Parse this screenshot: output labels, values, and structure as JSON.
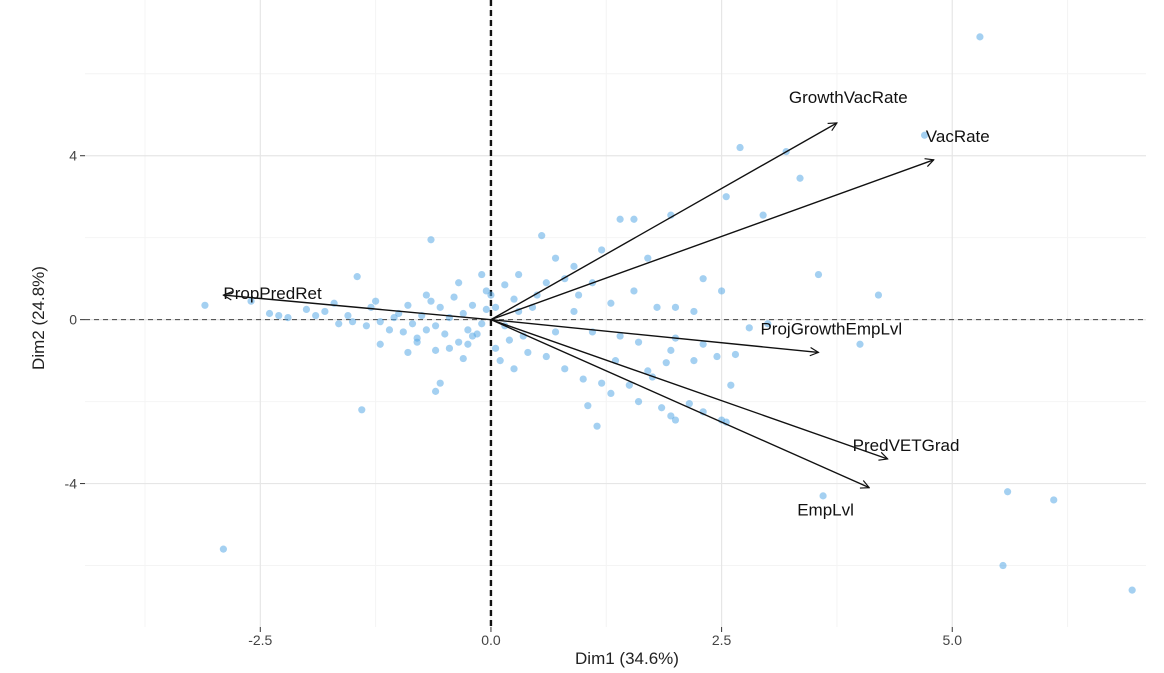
{
  "chart_data": {
    "type": "scatter",
    "xlabel": "Dim1 (34.6%)",
    "ylabel": "Dim2 (24.8%)",
    "xlim": [
      -4.4,
      7.1
    ],
    "ylim": [
      -7.5,
      7.8
    ],
    "x_ticks": [
      -2.5,
      0.0,
      2.5,
      5.0
    ],
    "x_tick_labels": [
      "-2.5",
      "0.0",
      "2.5",
      "5.0"
    ],
    "y_ticks": [
      -4,
      0,
      4
    ],
    "y_tick_labels": [
      "-4",
      "0",
      "4"
    ],
    "grid": true,
    "reference_lines": {
      "vertical_x": 0,
      "horizontal_y": 0
    },
    "point_color": "#5aa9e6",
    "arrow_color": "#111111",
    "vectors": [
      {
        "name": "GrowthVacRate",
        "x": 3.75,
        "y": 4.8
      },
      {
        "name": "VacRate",
        "x": 4.8,
        "y": 3.9
      },
      {
        "name": "PropPredRet",
        "x": -2.9,
        "y": 0.6
      },
      {
        "name": "ProjGrowthEmpLvl",
        "x": 3.55,
        "y": -0.8
      },
      {
        "name": "PredVETGrad",
        "x": 4.3,
        "y": -3.4
      },
      {
        "name": "EmpLvl",
        "x": 4.1,
        "y": -4.1
      }
    ],
    "points": [
      [
        5.3,
        6.9
      ],
      [
        4.7,
        4.5
      ],
      [
        2.7,
        4.2
      ],
      [
        3.2,
        4.1
      ],
      [
        3.35,
        3.45
      ],
      [
        2.55,
        3.0
      ],
      [
        1.95,
        2.55
      ],
      [
        2.95,
        2.55
      ],
      [
        1.4,
        2.45
      ],
      [
        1.55,
        2.45
      ],
      [
        0.55,
        2.05
      ],
      [
        -0.65,
        1.95
      ],
      [
        3.55,
        1.1
      ],
      [
        4.2,
        0.6
      ],
      [
        2.5,
        0.7
      ],
      [
        2.3,
        1.0
      ],
      [
        1.7,
        1.5
      ],
      [
        1.2,
        1.7
      ],
      [
        0.7,
        1.5
      ],
      [
        0.3,
        1.1
      ],
      [
        0.6,
        0.9
      ],
      [
        0.8,
        1.0
      ],
      [
        0.95,
        0.6
      ],
      [
        1.3,
        0.4
      ],
      [
        1.55,
        0.7
      ],
      [
        1.8,
        0.3
      ],
      [
        2.0,
        0.3
      ],
      [
        0.25,
        0.5
      ],
      [
        0.45,
        0.3
      ],
      [
        0.15,
        0.85
      ],
      [
        -0.1,
        1.1
      ],
      [
        -0.05,
        0.7
      ],
      [
        0.05,
        0.3
      ],
      [
        -3.1,
        0.35
      ],
      [
        -2.6,
        0.45
      ],
      [
        -2.4,
        0.15
      ],
      [
        -2.2,
        0.05
      ],
      [
        -2.0,
        0.25
      ],
      [
        -1.8,
        0.2
      ],
      [
        -1.7,
        0.4
      ],
      [
        -1.55,
        0.1
      ],
      [
        -1.45,
        1.05
      ],
      [
        -1.3,
        0.3
      ],
      [
        -1.2,
        -0.05
      ],
      [
        -1.1,
        -0.25
      ],
      [
        -1.0,
        0.15
      ],
      [
        -0.95,
        -0.3
      ],
      [
        -0.9,
        0.35
      ],
      [
        -0.85,
        -0.1
      ],
      [
        -0.8,
        -0.45
      ],
      [
        -0.75,
        0.1
      ],
      [
        -0.7,
        -0.25
      ],
      [
        -0.65,
        0.45
      ],
      [
        -0.6,
        -0.15
      ],
      [
        -0.55,
        0.3
      ],
      [
        -0.5,
        -0.35
      ],
      [
        -0.45,
        0.05
      ],
      [
        -0.4,
        0.55
      ],
      [
        -0.35,
        -0.55
      ],
      [
        -0.3,
        0.15
      ],
      [
        -0.25,
        -0.25
      ],
      [
        -0.2,
        0.35
      ],
      [
        -0.15,
        -0.35
      ],
      [
        -0.1,
        -0.1
      ],
      [
        -0.05,
        0.25
      ],
      [
        -0.6,
        -0.75
      ],
      [
        -0.9,
        -0.8
      ],
      [
        -1.2,
        -0.6
      ],
      [
        -0.3,
        -0.95
      ],
      [
        -0.55,
        -1.55
      ],
      [
        -0.6,
        -1.75
      ],
      [
        0.15,
        -0.15
      ],
      [
        0.2,
        -0.5
      ],
      [
        0.4,
        -0.8
      ],
      [
        0.6,
        -0.9
      ],
      [
        0.8,
        -1.2
      ],
      [
        1.0,
        -1.45
      ],
      [
        1.2,
        -1.55
      ],
      [
        1.05,
        -2.1
      ],
      [
        1.3,
        -1.8
      ],
      [
        1.5,
        -1.6
      ],
      [
        1.6,
        -2.0
      ],
      [
        1.85,
        -2.15
      ],
      [
        1.95,
        -2.35
      ],
      [
        2.0,
        -2.45
      ],
      [
        2.15,
        -2.05
      ],
      [
        2.5,
        -2.45
      ],
      [
        2.55,
        -2.5
      ],
      [
        2.3,
        -2.25
      ],
      [
        1.7,
        -1.25
      ],
      [
        1.9,
        -1.05
      ],
      [
        2.2,
        -1.0
      ],
      [
        2.45,
        -0.9
      ],
      [
        2.65,
        -0.85
      ],
      [
        1.95,
        -0.75
      ],
      [
        1.6,
        -0.55
      ],
      [
        2.0,
        -0.45
      ],
      [
        -1.4,
        -2.2
      ],
      [
        3.6,
        -4.3
      ],
      [
        5.6,
        -4.2
      ],
      [
        6.1,
        -4.4
      ],
      [
        5.55,
        -6.0
      ],
      [
        6.95,
        -6.6
      ],
      [
        -2.9,
        -5.6
      ],
      [
        0.9,
        0.2
      ],
      [
        1.1,
        -0.3
      ],
      [
        0.5,
        0.6
      ],
      [
        0.35,
        -0.4
      ],
      [
        -0.25,
        -0.6
      ],
      [
        -1.5,
        -0.05
      ],
      [
        -1.65,
        -0.1
      ],
      [
        -1.35,
        -0.15
      ],
      [
        -1.05,
        0.05
      ],
      [
        -0.7,
        0.6
      ],
      [
        -0.45,
        -0.7
      ],
      [
        0.05,
        -0.7
      ],
      [
        0.7,
        -0.3
      ],
      [
        1.4,
        -0.4
      ],
      [
        2.3,
        -0.6
      ],
      [
        2.8,
        -0.2
      ],
      [
        3.0,
        -0.1
      ],
      [
        4.0,
        -0.6
      ],
      [
        2.2,
        0.2
      ],
      [
        1.1,
        0.9
      ],
      [
        0.9,
        1.3
      ],
      [
        0.3,
        0.2
      ],
      [
        -0.2,
        -0.4
      ],
      [
        -1.9,
        0.1
      ],
      [
        -2.3,
        0.1
      ],
      [
        -1.25,
        0.45
      ],
      [
        -0.8,
        -0.55
      ],
      [
        -0.35,
        0.9
      ],
      [
        0.0,
        0.6
      ],
      [
        0.1,
        -1.0
      ],
      [
        0.25,
        -1.2
      ],
      [
        1.35,
        -1.0
      ],
      [
        1.75,
        -1.4
      ],
      [
        2.6,
        -1.6
      ],
      [
        1.15,
        -2.6
      ]
    ]
  }
}
